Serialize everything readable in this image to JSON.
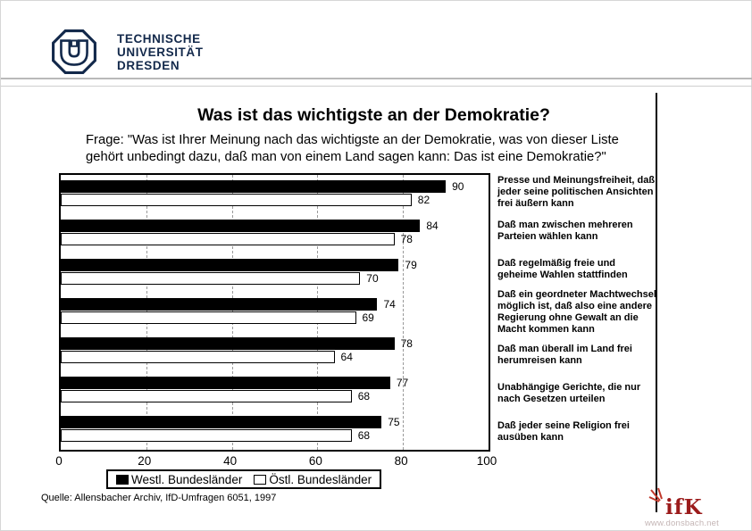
{
  "header": {
    "university_lines": "TECHNISCHE\nUNIVERSITÄT\nDRESDEN"
  },
  "slide": {
    "title": "Was ist das wichtigste an der Demokratie?",
    "question": "Frage: \"Was ist Ihrer Meinung nach das wichtigste an der Demokratie, was von dieser Liste\ngehört unbedingt dazu, daß man von einem Land sagen kann: Das ist eine Demokratie?\"",
    "source": "Quelle: Allensbacher Archiv, IfD-Umfragen 6051, 1997"
  },
  "chart_data": {
    "type": "bar",
    "orientation": "horizontal",
    "categories": [
      "Presse und Meinungsfreiheit, daß jeder seine politischen Ansichten frei äußern kann",
      "Daß man zwischen mehreren Parteien wählen kann",
      "Daß regelmäßig freie und geheime Wahlen stattfinden",
      "Daß ein geordneter Machtwechsel möglich ist, daß also eine andere Regierung ohne Gewalt an die Macht kommen kann",
      "Daß man überall im Land frei herumreisen kann",
      "Unabhängige Gerichte, die nur nach Gesetzen urteilen",
      "Daß jeder seine Religion frei ausüben kann"
    ],
    "series": [
      {
        "name": "Westl. Bundesländer",
        "color": "#000000",
        "values": [
          90,
          84,
          79,
          74,
          78,
          77,
          75
        ]
      },
      {
        "name": "Östl. Bundesländer",
        "color": "#ffffff",
        "values": [
          82,
          78,
          70,
          69,
          64,
          68,
          68
        ]
      }
    ],
    "xlim": [
      0,
      100
    ],
    "xticks": [
      0,
      20,
      40,
      60,
      80,
      100
    ],
    "grid": "dashed vertical at 20/40/60/80",
    "legend_position": "bottom"
  },
  "footer": {
    "ifk_label": "ifK",
    "website": "www.donsbach.net"
  },
  "colors": {
    "tu_navy": "#13294b",
    "bar_black": "#000000",
    "bar_white": "#ffffff",
    "ifk_red": "#9b1b1b",
    "ifk_ray_red": "#c0392b",
    "website_grey": "#c4b5b5"
  }
}
